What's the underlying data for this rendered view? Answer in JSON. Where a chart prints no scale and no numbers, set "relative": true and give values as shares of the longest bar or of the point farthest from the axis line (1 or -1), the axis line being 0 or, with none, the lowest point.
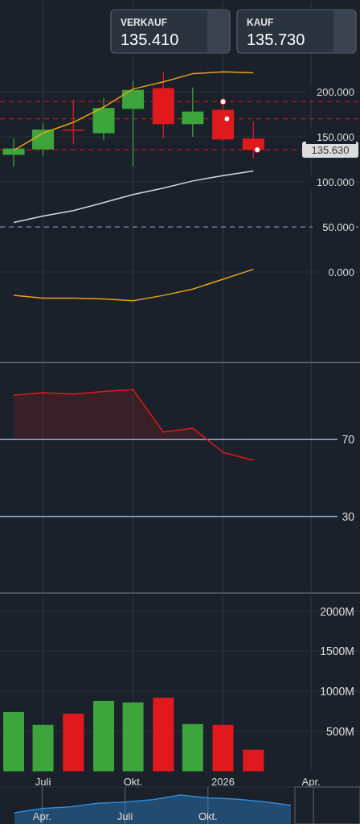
{
  "chart_data": [
    {
      "type": "candlestick",
      "annotations": [
        "VERKAUF",
        "135.410",
        "KAUF",
        "135.730"
      ],
      "x": [
        "2025-06-01",
        "2025-07-01",
        "2025-08-01",
        "2025-09-01",
        "2025-10-01",
        "2025-11-01",
        "2025-12-01",
        "2026-01-01",
        "2026-02-01"
      ],
      "ohlc": [
        [
          130,
          148,
          117,
          137
        ],
        [
          136,
          165,
          129,
          158
        ],
        [
          158,
          191,
          142,
          157
        ],
        [
          154,
          193,
          146,
          182
        ],
        [
          181,
          212,
          117,
          202
        ],
        [
          204,
          222,
          148,
          164
        ],
        [
          164,
          205,
          150,
          178
        ],
        [
          180,
          193,
          146,
          147
        ],
        [
          148,
          167,
          126,
          135.63
        ]
      ],
      "colors": [
        "#3ca53c",
        "#3ca53c",
        "#e0191c",
        "#3ca53c",
        "#3ca53c",
        "#e0191c",
        "#3ca53c",
        "#e0191c",
        "#e0191c"
      ],
      "series": [
        {
          "type": "line",
          "color": "#e8a317",
          "values": [
            135,
            154,
            166,
            183,
            203,
            211,
            220,
            222,
            221
          ]
        },
        {
          "type": "line",
          "color": "#d9d9d9",
          "values": [
            55,
            62,
            68,
            77,
            86,
            93,
            101,
            107,
            112
          ]
        },
        {
          "type": "line",
          "color": "#e8a317",
          "values": [
            -26,
            -29,
            -29,
            -30,
            -32,
            -26,
            -19,
            -8,
            3
          ]
        },
        {
          "type": "scatter",
          "color": "#ffffff",
          "x": [
            "2026-01-01",
            "2026-01-05",
            "2026-02-05"
          ],
          "values": [
            189,
            170,
            135.63
          ]
        }
      ],
      "ref_lines": [
        {
          "axis": "y",
          "value": 189,
          "color": "#c0191c",
          "line_style": "dashed"
        },
        {
          "axis": "y",
          "value": 170,
          "color": "#c0191c",
          "line_style": "dashed"
        },
        {
          "axis": "y",
          "value": 135.63,
          "label": "135.630",
          "color": "#c0191c",
          "line_style": "dashed"
        },
        {
          "axis": "y",
          "value": 50,
          "color": "#7a6f9a",
          "line_style": "dashed"
        }
      ],
      "xlim": [
        "2025-05-18",
        "2026-05-21"
      ],
      "ylim": [
        -100,
        300
      ],
      "xticks": [
        {
          "value": "2025-07-01",
          "label": null
        },
        {
          "value": "2025-10-01",
          "label": null
        },
        {
          "value": "2026-01-01",
          "label": null
        },
        {
          "value": "2026-04-01",
          "label": null
        }
      ],
      "yticks": [
        {
          "value": 0,
          "label": "0.000"
        },
        {
          "value": 50,
          "label": "50.000"
        },
        {
          "value": 100,
          "label": "100.000"
        },
        {
          "value": 150,
          "label": "150.000"
        },
        {
          "value": 200,
          "label": "200.000"
        }
      ],
      "grid": true,
      "tick_labels": "y"
    },
    {
      "type": "line",
      "x": [
        "2025-06-01",
        "2025-07-01",
        "2025-08-01",
        "2025-09-01",
        "2025-10-01",
        "2025-11-01",
        "2025-12-01",
        "2026-01-01",
        "2026-02-01"
      ],
      "series": [
        {
          "color": "#e0191c",
          "values": [
            93,
            94.4,
            93.7,
            95,
            96,
            73.9,
            76,
            63.3,
            59.2
          ]
        }
      ],
      "xlim": [
        "2025-05-18",
        "2026-05-21"
      ],
      "ylim": [
        -9,
        110
      ],
      "xticks": [
        {
          "value": "2025-07-01",
          "label": null
        },
        {
          "value": "2025-10-01",
          "label": null
        },
        {
          "value": "2026-01-01",
          "label": null
        },
        {
          "value": "2026-04-01",
          "label": null
        }
      ],
      "yticks": [
        30,
        70
      ],
      "grid": true,
      "tick_labels": "y"
    },
    {
      "type": "bar",
      "x": [
        "2025-06-01",
        "2025-07-01",
        "2025-08-01",
        "2025-09-01",
        "2025-10-01",
        "2025-11-01",
        "2025-12-01",
        "2026-01-01",
        "2026-02-01"
      ],
      "values": [
        740,
        580,
        720,
        880,
        860,
        920,
        590,
        580,
        270
      ],
      "colors": [
        "#3ca53c",
        "#3ca53c",
        "#e0191c",
        "#3ca53c",
        "#3ca53c",
        "#e0191c",
        "#3ca53c",
        "#e0191c",
        "#e0191c"
      ],
      "xlim": [
        "2025-05-18",
        "2026-05-21"
      ],
      "ylim": [
        0,
        2200
      ],
      "xticks": [
        {
          "value": "2025-07-01",
          "label": "Juli"
        },
        {
          "value": "2025-10-01",
          "label": "Okt."
        },
        {
          "value": "2026-01-01",
          "label": "2026"
        },
        {
          "value": "2026-04-01",
          "label": "Apr."
        }
      ],
      "yticks": [
        {
          "value": 500,
          "label": "500M"
        },
        {
          "value": 1000,
          "label": "1000M"
        },
        {
          "value": 1500,
          "label": "1500M"
        },
        {
          "value": 2000,
          "label": "2000M"
        }
      ],
      "grid": true
    },
    {
      "type": "area",
      "relative": true,
      "color": "#2f8ad8",
      "categories": [
        null,
        "Apr.",
        null,
        null,
        "Juli",
        null,
        null,
        "Okt.",
        null,
        null,
        null
      ],
      "values": [
        0,
        0.24,
        0.33,
        0.53,
        0.6,
        0.74,
        1,
        0.84,
        0.77,
        0.63,
        0.42
      ],
      "tick_labels": "x",
      "grid": "x"
    }
  ]
}
